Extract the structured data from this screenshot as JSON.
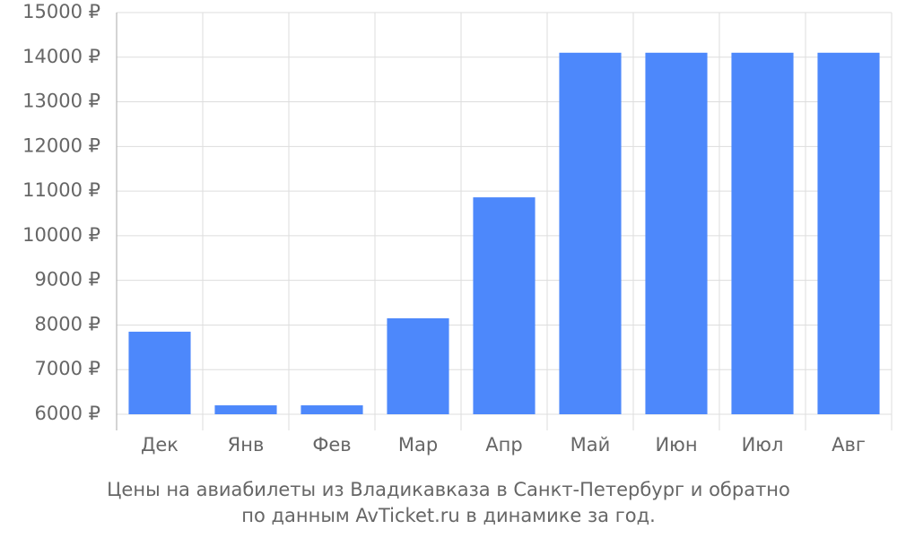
{
  "chart_data": {
    "type": "bar",
    "caption": [
      "Цены на авиабилеты из Владикавказа в Санкт-Петербург и обратно",
      "по данным AvTicket.ru в динамике за год."
    ],
    "categories": [
      "Дек",
      "Янв",
      "Фев",
      "Мар",
      "Апр",
      "Май",
      "Июн",
      "Июл",
      "Авг"
    ],
    "values": [
      7850,
      6200,
      6200,
      8150,
      10860,
      14100,
      14100,
      14100,
      14100
    ],
    "color": "#4d88fb",
    "ylim": [
      6000,
      15000
    ],
    "yticks": [
      {
        "value": 6000,
        "label": "6000 ₽"
      },
      {
        "value": 7000,
        "label": "7000 ₽"
      },
      {
        "value": 8000,
        "label": "8000 ₽"
      },
      {
        "value": 9000,
        "label": "9000 ₽"
      },
      {
        "value": 10000,
        "label": "10000 ₽"
      },
      {
        "value": 11000,
        "label": "11000 ₽"
      },
      {
        "value": 12000,
        "label": "12000 ₽"
      },
      {
        "value": 13000,
        "label": "13000 ₽"
      },
      {
        "value": 14000,
        "label": "14000 ₽"
      },
      {
        "value": 15000,
        "label": "15000 ₽"
      }
    ],
    "grid": true
  }
}
